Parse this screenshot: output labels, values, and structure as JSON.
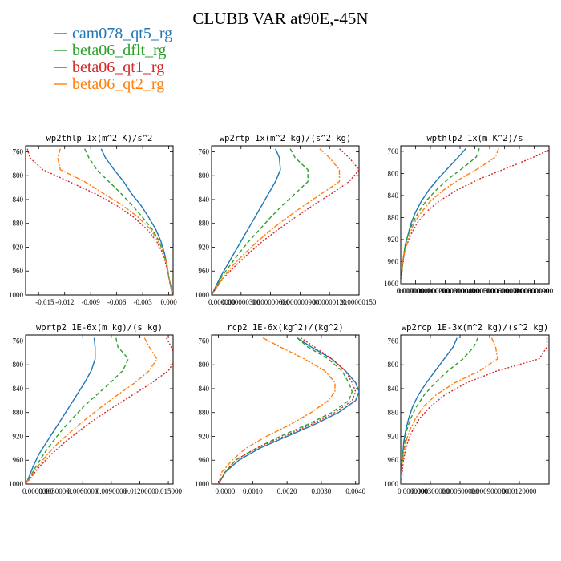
{
  "title": "CLUBB VAR at90E,-45N",
  "colors": {
    "cam078_qt5_rg": "#1f77b4",
    "beta06_dflt_rg": "#2ca02c",
    "beta06_qt1_rg": "#d62728",
    "beta06_qt2_rg": "#ff7f0e"
  },
  "chart_data": [
    {
      "type": "line",
      "title": "wp2thlp  1x(m^2 K)/s^2",
      "ylim": [
        1000,
        750
      ],
      "yticks": [
        1000,
        960,
        920,
        880,
        840,
        800,
        760
      ],
      "ytick_labels": [
        "1000",
        "960",
        "920",
        "880",
        "840",
        "800",
        "760"
      ],
      "xlim": [
        -0.0165,
        0.0005
      ],
      "xticks": [
        -0.015,
        -0.012,
        -0.009,
        -0.006,
        -0.003,
        0.0
      ],
      "xtick_labels": [
        "-0.015",
        "-0.012",
        "-0.009",
        "-0.006",
        "-0.003",
        "0.000"
      ],
      "y": [
        755,
        770,
        790,
        810,
        830,
        850,
        870,
        890,
        910,
        930,
        950,
        970,
        990,
        1000
      ],
      "series": [
        {
          "name": "cam078_qt5_rg",
          "style": "solid",
          "values": [
            -0.0078,
            -0.0073,
            -0.0063,
            -0.0052,
            -0.0043,
            -0.0032,
            -0.0023,
            -0.0015,
            -0.0009,
            -0.0005,
            -0.0002,
            0.0,
            0.0003,
            0.0004
          ]
        },
        {
          "name": "beta06_dflt_rg",
          "style": "dash",
          "values": [
            -0.0097,
            -0.0092,
            -0.0083,
            -0.0069,
            -0.0055,
            -0.0042,
            -0.003,
            -0.0019,
            -0.0011,
            -0.0006,
            -0.0002,
            0.0,
            0.0003,
            0.0004
          ]
        },
        {
          "name": "beta06_qt1_rg",
          "style": "dot",
          "values": [
            -0.0163,
            -0.016,
            -0.0145,
            -0.0115,
            -0.0085,
            -0.006,
            -0.004,
            -0.0025,
            -0.0014,
            -0.0007,
            -0.0003,
            0.0,
            0.0003,
            0.0004
          ]
        },
        {
          "name": "beta06_qt2_rg",
          "style": "dashdot",
          "values": [
            -0.0125,
            -0.0128,
            -0.0125,
            -0.0097,
            -0.0075,
            -0.0053,
            -0.0035,
            -0.0021,
            -0.0012,
            -0.0006,
            -0.0002,
            0.0,
            0.0003,
            0.0004
          ]
        }
      ]
    },
    {
      "type": "line",
      "title": "wp2rtp  1x(m^2 kg)/(s^2 kg)",
      "ylim": [
        1000,
        750
      ],
      "yticks": [
        1000,
        960,
        920,
        880,
        840,
        800,
        760
      ],
      "ytick_labels": [
        "1000",
        "960",
        "920",
        "880",
        "840",
        "800",
        "760"
      ],
      "xlim": [
        0,
        1.5e-06
      ],
      "xticks": [
        0,
        3e-07,
        6e-07,
        9e-07,
        1.2e-06,
        1.5e-06
      ],
      "xtick_labels": [
        "0.000000",
        "0.000000300",
        "0.000000600",
        "0.000000900",
        "0.00000120",
        "0.00000150"
      ],
      "y": [
        755,
        770,
        790,
        810,
        830,
        850,
        870,
        890,
        910,
        930,
        950,
        970,
        990,
        1000
      ],
      "series": [
        {
          "name": "cam078_qt5_rg",
          "style": "solid",
          "values": [
            6.5e-07,
            6.9e-07,
            7e-07,
            6.5e-07,
            5.8e-07,
            5.1e-07,
            4.4e-07,
            3.7e-07,
            3e-07,
            2.3e-07,
            1.6e-07,
            9e-08,
            3e-08,
            0.0
          ]
        },
        {
          "name": "beta06_dflt_rg",
          "style": "dash",
          "values": [
            8e-07,
            8.5e-07,
            9.8e-07,
            9.8e-07,
            8.5e-07,
            7.2e-07,
            6e-07,
            4.9e-07,
            3.8e-07,
            2.8e-07,
            1.9e-07,
            1e-07,
            4e-08,
            0.0
          ]
        },
        {
          "name": "beta06_qt1_rg",
          "style": "dot",
          "values": [
            1.3e-06,
            1.4e-06,
            1.5e-06,
            1.4e-06,
            1.22e-06,
            1.03e-06,
            8.5e-07,
            6.8e-07,
            5.2e-07,
            3.8e-07,
            2.5e-07,
            1.3e-07,
            4e-08,
            0.0
          ]
        },
        {
          "name": "beta06_qt2_rg",
          "style": "dashdot",
          "values": [
            1.1e-06,
            1.2e-06,
            1.3e-06,
            1.3e-06,
            1.12e-06,
            9.4e-07,
            7.7e-07,
            6.1e-07,
            4.7e-07,
            3.4e-07,
            2.2e-07,
            1.2e-07,
            4e-08,
            0.0
          ]
        }
      ]
    },
    {
      "type": "line",
      "title": "wpthlp2  1x(m K^2)/s",
      "ylim": [
        1000,
        750
      ],
      "yticks": [
        1000,
        960,
        920,
        880,
        840,
        800,
        760
      ],
      "ytick_labels": [
        "1000",
        "960",
        "920",
        "880",
        "840",
        "800",
        "760"
      ],
      "xlim": [
        0,
        1e-06
      ],
      "xticks": [
        0,
        1e-07,
        2e-07,
        3e-07,
        4e-07,
        5e-07,
        6e-07,
        7e-07,
        8e-07,
        9e-07,
        1e-06
      ],
      "xtick_labels": [
        "0.000000",
        "0.000000100",
        "0.000000200",
        "0.000000300",
        "0.000000400",
        "0.000000500",
        "0.000000600",
        "0.000000700",
        "0.000000800",
        "0.000000900",
        "0.00000100"
      ],
      "y": [
        755,
        770,
        790,
        810,
        830,
        850,
        870,
        890,
        910,
        930,
        950,
        970,
        990,
        1000
      ],
      "series": [
        {
          "name": "cam078_qt5_rg",
          "style": "solid",
          "values": [
            4.4e-07,
            3.9e-07,
            3.2e-07,
            2.5e-07,
            1.9e-07,
            1.4e-07,
            1e-07,
            7e-08,
            5e-08,
            3e-08,
            2e-08,
            1e-08,
            5e-09,
            0.0
          ]
        },
        {
          "name": "beta06_dflt_rg",
          "style": "dash",
          "values": [
            5.3e-07,
            5.1e-07,
            4.2e-07,
            3.2e-07,
            2.4e-07,
            1.7e-07,
            1.2e-07,
            8e-08,
            5e-08,
            3e-08,
            2e-08,
            1e-08,
            5e-09,
            0.0
          ]
        },
        {
          "name": "beta06_qt1_rg",
          "style": "dot",
          "values": [
            1.02e-06,
            9e-07,
            7.2e-07,
            5.3e-07,
            3.8e-07,
            2.6e-07,
            1.7e-07,
            1.1e-07,
            7e-08,
            4e-08,
            2e-08,
            1e-08,
            5e-09,
            0.0
          ]
        },
        {
          "name": "beta06_qt2_rg",
          "style": "dashdot",
          "values": [
            6.6e-07,
            6.4e-07,
            5.3e-07,
            4e-07,
            2.9e-07,
            2e-07,
            1.4e-07,
            9e-08,
            6e-08,
            4e-08,
            2e-08,
            1e-08,
            5e-09,
            0.0
          ]
        }
      ]
    },
    {
      "type": "line",
      "title": "wprtp2  1E-6x(m kg)/(s kg)",
      "ylim": [
        1000,
        750
      ],
      "yticks": [
        1000,
        960,
        920,
        880,
        840,
        800,
        760
      ],
      "ytick_labels": [
        "1000",
        "960",
        "920",
        "880",
        "840",
        "800",
        "760"
      ],
      "xlim": [
        0,
        0.0155
      ],
      "xticks": [
        0,
        0.003,
        0.006,
        0.009,
        0.012,
        0.015
      ],
      "xtick_labels": [
        "0.0000000",
        "0.0030000",
        "0.0060000",
        "0.0090000",
        "0.0120000",
        "0.015000"
      ],
      "y": [
        755,
        770,
        790,
        810,
        830,
        850,
        870,
        890,
        910,
        930,
        950,
        970,
        990,
        1000
      ],
      "series": [
        {
          "name": "cam078_qt5_rg",
          "style": "solid",
          "values": [
            0.0072,
            0.0073,
            0.0073,
            0.0069,
            0.0062,
            0.0054,
            0.0046,
            0.0038,
            0.003,
            0.0022,
            0.0014,
            0.0008,
            0.0003,
            0.0
          ]
        },
        {
          "name": "beta06_dflt_rg",
          "style": "dash",
          "values": [
            0.0095,
            0.0097,
            0.0108,
            0.0102,
            0.0089,
            0.0075,
            0.0061,
            0.0049,
            0.0038,
            0.0028,
            0.0019,
            0.0011,
            0.0004,
            0.0
          ]
        },
        {
          "name": "beta06_qt1_rg",
          "style": "dot",
          "values": [
            0.0148,
            0.0153,
            0.0158,
            0.015,
            0.0133,
            0.0113,
            0.0093,
            0.0074,
            0.0057,
            0.0041,
            0.0027,
            0.0015,
            0.0005,
            0.0
          ]
        },
        {
          "name": "beta06_qt2_rg",
          "style": "dashdot",
          "values": [
            0.0125,
            0.013,
            0.0138,
            0.013,
            0.0115,
            0.0097,
            0.008,
            0.0064,
            0.0049,
            0.0035,
            0.0023,
            0.0013,
            0.0004,
            0.0
          ]
        }
      ]
    },
    {
      "type": "line",
      "title": "rcp2  1E-6x(kg^2)/(kg^2)",
      "ylim": [
        1000,
        750
      ],
      "yticks": [
        1000,
        960,
        920,
        880,
        840,
        800,
        760
      ],
      "ytick_labels": [
        "1000",
        "960",
        "920",
        "880",
        "840",
        "800",
        "760"
      ],
      "xlim": [
        -0.0002,
        0.0041
      ],
      "xticks": [
        0,
        0.001,
        0.002,
        0.003,
        0.004
      ],
      "xtick_labels": [
        "0.0000",
        "0.0010",
        "0.0020",
        "0.0030",
        "0.0040"
      ],
      "y": [
        755,
        770,
        790,
        810,
        830,
        845,
        860,
        880,
        900,
        920,
        940,
        960,
        980,
        1000
      ],
      "series": [
        {
          "name": "cam078_qt5_rg",
          "style": "solid",
          "values": [
            0.0023,
            0.0027,
            0.0033,
            0.0037,
            0.004,
            0.0041,
            0.004,
            0.0035,
            0.0028,
            0.002,
            0.0012,
            0.0006,
            0.0002,
            0.0
          ]
        },
        {
          "name": "beta06_dflt_rg",
          "style": "dash",
          "values": [
            0.0023,
            0.0026,
            0.0032,
            0.0036,
            0.0038,
            0.0039,
            0.0038,
            0.0033,
            0.0026,
            0.0018,
            0.0011,
            0.0005,
            0.0002,
            0.0
          ]
        },
        {
          "name": "beta06_qt1_rg",
          "style": "dot",
          "values": [
            0.0024,
            0.0028,
            0.0033,
            0.0037,
            0.0039,
            0.004,
            0.0039,
            0.0034,
            0.0027,
            0.0019,
            0.0011,
            0.0005,
            0.0002,
            0.0
          ]
        },
        {
          "name": "beta06_qt2_rg",
          "style": "dashdot",
          "values": [
            0.0013,
            0.0018,
            0.0025,
            0.0031,
            0.0034,
            0.0034,
            0.0032,
            0.0027,
            0.0021,
            0.0014,
            0.0008,
            0.0004,
            0.0001,
            0.0
          ]
        }
      ]
    },
    {
      "type": "line",
      "title": "wp2rcp  1E-3x(m^2 kg)/(s^2 kg)",
      "ylim": [
        1000,
        750
      ],
      "yticks": [
        1000,
        960,
        920,
        880,
        840,
        800,
        760
      ],
      "ytick_labels": [
        "1000",
        "960",
        "920",
        "880",
        "840",
        "800",
        "760"
      ],
      "xlim": [
        0,
        0.0015
      ],
      "xticks": [
        0,
        0.0003,
        0.0006,
        0.0009,
        0.0012
      ],
      "xtick_labels": [
        "0.0000000",
        "0.000300000",
        "0.000600000",
        "0.000900000",
        "0.00120000"
      ],
      "y": [
        755,
        770,
        790,
        810,
        830,
        850,
        870,
        890,
        910,
        930,
        950,
        970,
        990,
        1000
      ],
      "series": [
        {
          "name": "cam078_qt5_rg",
          "style": "solid",
          "values": [
            0.00057,
            0.00053,
            0.00044,
            0.00035,
            0.00026,
            0.00018,
            0.00012,
            8e-05,
            5e-05,
            3e-05,
            2e-05,
            1e-05,
            5e-06,
            0.0
          ]
        },
        {
          "name": "beta06_dflt_rg",
          "style": "dash",
          "values": [
            0.00078,
            0.00074,
            0.00063,
            0.00048,
            0.00035,
            0.00024,
            0.00016,
            0.0001,
            6e-05,
            4e-05,
            2e-05,
            1e-05,
            5e-06,
            0.0
          ]
        },
        {
          "name": "beta06_qt1_rg",
          "style": "dot",
          "values": [
            0.00148,
            0.00148,
            0.0014,
            0.00098,
            0.00067,
            0.00045,
            0.0003,
            0.00019,
            0.00012,
            7e-05,
            4e-05,
            2e-05,
            1e-05,
            0.0
          ]
        },
        {
          "name": "beta06_qt2_rg",
          "style": "dashdot",
          "values": [
            0.00092,
            0.00096,
            0.00098,
            0.0008,
            0.00055,
            0.00036,
            0.00023,
            0.00015,
            9e-05,
            5e-05,
            3e-05,
            1e-05,
            5e-06,
            0.0
          ]
        }
      ]
    }
  ],
  "legend": [
    {
      "name": "cam078_qt5_rg",
      "key": "cam078_qt5_rg"
    },
    {
      "name": "beta06_dflt_rg",
      "key": "beta06_dflt_rg"
    },
    {
      "name": "beta06_qt1_rg",
      "key": "beta06_qt1_rg"
    },
    {
      "name": "beta06_qt2_rg",
      "key": "beta06_qt2_rg"
    }
  ]
}
